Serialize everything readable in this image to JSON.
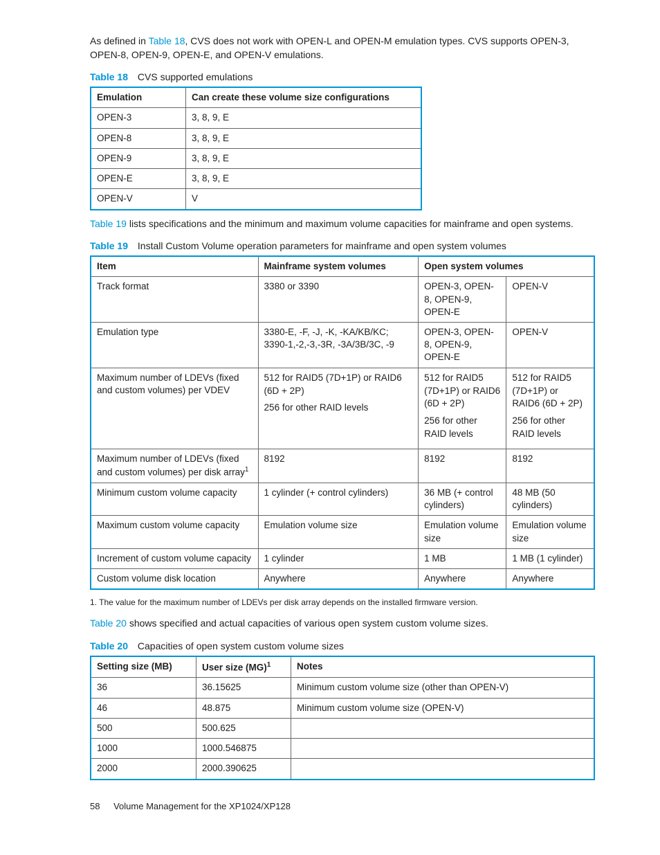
{
  "intro": {
    "p1_prefix": "As defined in ",
    "p1_link": "Table 18",
    "p1_suffix": ", CVS does not work with OPEN-L and OPEN-M emulation types. CVS supports OPEN-3, OPEN-8, OPEN-9, OPEN-E, and OPEN-V emulations."
  },
  "table18": {
    "label": "Table 18",
    "caption": "CVS supported emulations",
    "headers": [
      "Emulation",
      "Can create these volume size configurations"
    ],
    "rows": [
      [
        "OPEN-3",
        "3, 8, 9, E"
      ],
      [
        "OPEN-8",
        "3, 8, 9, E"
      ],
      [
        "OPEN-9",
        "3, 8, 9, E"
      ],
      [
        "OPEN-E",
        "3, 8, 9, E"
      ],
      [
        "OPEN-V",
        "V"
      ]
    ]
  },
  "mid1": {
    "link": "Table 19",
    "suffix": " lists specifications and the minimum and maximum volume capacities for mainframe and open systems."
  },
  "table19": {
    "label": "Table 19",
    "caption": "Install Custom Volume operation parameters for mainframe and open system volumes",
    "headers": [
      "Item",
      "Mainframe system volumes",
      "Open system volumes"
    ],
    "header_colspan": [
      1,
      1,
      2
    ],
    "rows": [
      {
        "cells": [
          "Track format",
          "3380 or 3390",
          "OPEN-3, OPEN-8, OPEN-9, OPEN-E",
          "OPEN-V"
        ]
      },
      {
        "cells": [
          "Emulation type",
          "3380-E, -F, -J, -K, -KA/KB/KC; 3390-1,-2,-3,-3R, -3A/3B/3C, -9",
          "OPEN-3, OPEN-8, OPEN-9, OPEN-E",
          "OPEN-V"
        ]
      },
      {
        "cells_html": [
          "Maximum number of LDEVs (fixed and custom volumes) per VDEV",
          "<p class='multi-p'>512 for RAID5 (7D+1P) or RAID6 (6D + 2P)</p><p class='multi-p'>256 for other RAID levels</p>",
          "<p class='multi-p'>512 for RAID5 (7D+1P) or RAID6 (6D + 2P)</p><p class='multi-p'>256 for other RAID levels</p>",
          "<p class='multi-p'>512 for RAID5 (7D+1P) or RAID6 (6D + 2P)</p><p class='multi-p'>256 for other RAID levels</p>"
        ]
      },
      {
        "cells_html": [
          "Maximum number of LDEVs (fixed and custom volumes) per disk array<sup>1</sup>",
          "8192",
          "8192",
          "8192"
        ]
      },
      {
        "cells": [
          "Minimum custom volume capacity",
          "1 cylinder (+ control cylinders)",
          "36 MB (+ control cylinders)",
          "48 MB (50 cylinders)"
        ]
      },
      {
        "cells": [
          "Maximum custom volume capacity",
          "Emulation volume size",
          "Emulation volume size",
          "Emulation volume size"
        ]
      },
      {
        "cells": [
          "Increment of custom volume capacity",
          "1 cylinder",
          "1 MB",
          "1 MB (1 cylinder)"
        ]
      },
      {
        "cells": [
          "Custom volume disk location",
          "Anywhere",
          "Anywhere",
          "Anywhere"
        ]
      }
    ],
    "footnote": "1. The value for the maximum number of LDEVs per disk array depends on the installed firmware version."
  },
  "mid2": {
    "link": "Table 20",
    "suffix": " shows specified and actual capacities of various open system custom volume sizes."
  },
  "table20": {
    "label": "Table 20",
    "caption": "Capacities of open system custom volume sizes",
    "headers_html": [
      "Setting size (MB)",
      "User size (MG)<sup>1</sup>",
      "Notes"
    ],
    "rows": [
      [
        "36",
        "36.15625",
        "Minimum custom volume size (other than OPEN-V)"
      ],
      [
        "46",
        "48.875",
        "Minimum custom volume size (OPEN-V)"
      ],
      [
        "500",
        "500.625",
        ""
      ],
      [
        "1000",
        "1000.546875",
        ""
      ],
      [
        "2000",
        "2000.390625",
        ""
      ]
    ]
  },
  "footer": {
    "page_num": "58",
    "title": "Volume Management for the XP1024/XP128"
  }
}
